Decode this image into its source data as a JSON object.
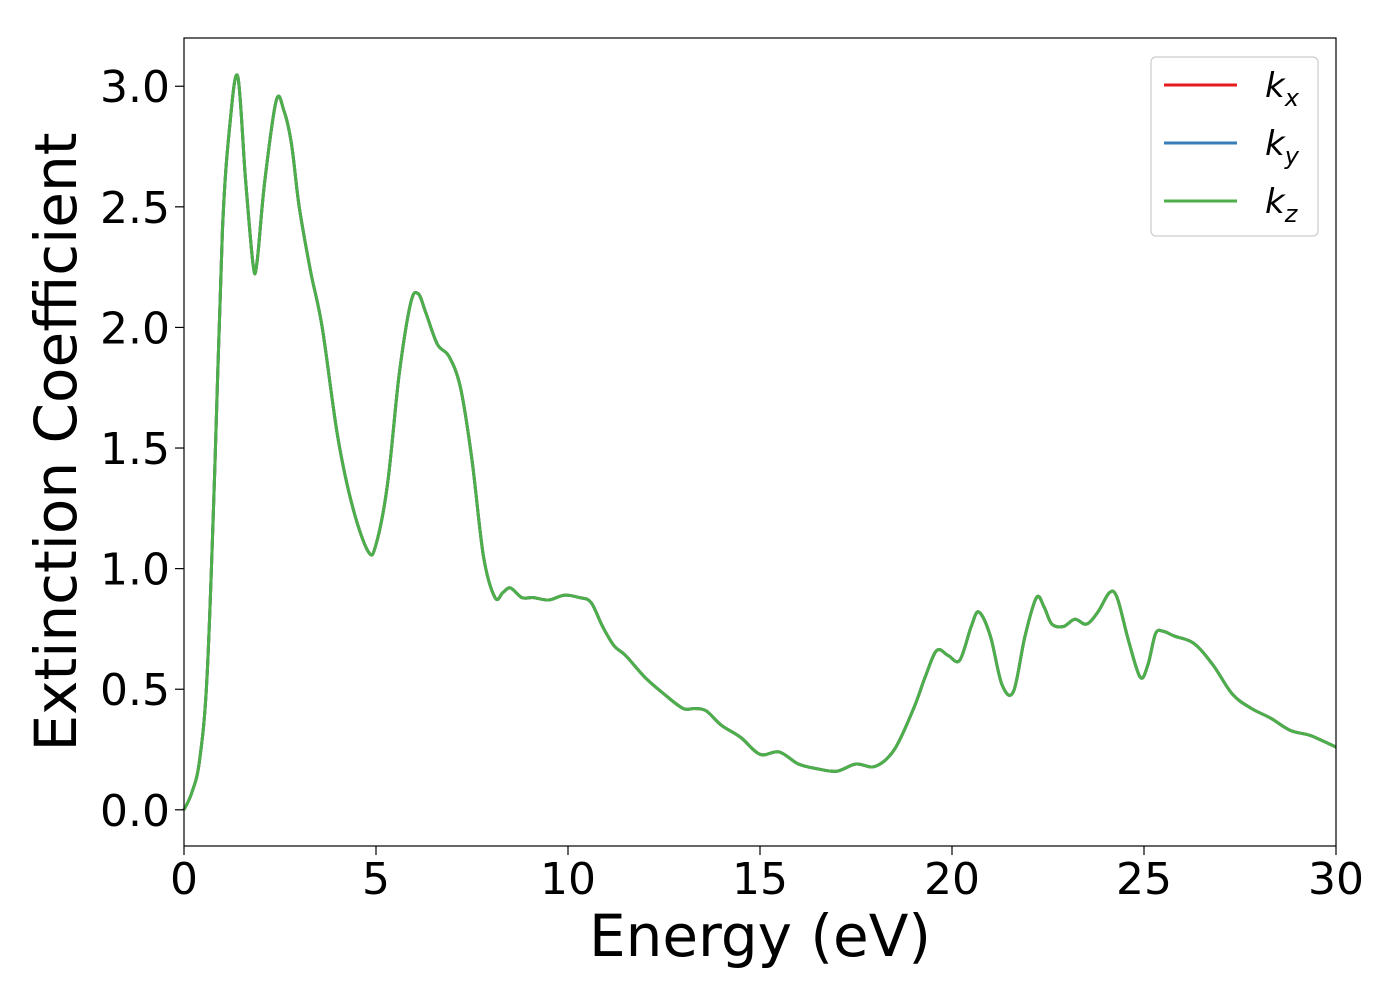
{
  "chart_data": {
    "type": "line",
    "title": "",
    "xlabel": "Energy (eV)",
    "ylabel": "Extinction Coefficient",
    "xlim": [
      0,
      30
    ],
    "ylim": [
      -0.15,
      3.2
    ],
    "xticks": [
      0,
      5,
      10,
      15,
      20,
      25,
      30
    ],
    "xtick_labels": [
      "0",
      "5",
      "10",
      "15",
      "20",
      "25",
      "30"
    ],
    "yticks": [
      0.0,
      0.5,
      1.0,
      1.5,
      2.0,
      2.5,
      3.0
    ],
    "ytick_labels": [
      "0.0",
      "0.5",
      "1.0",
      "1.5",
      "2.0",
      "2.5",
      "3.0"
    ],
    "grid": false,
    "legend_position": "top-right",
    "series": [
      {
        "name": "k_x",
        "legend_base": "k",
        "legend_sub": "x",
        "color": "#e41a1c",
        "x": [
          0,
          0.2,
          0.4,
          0.6,
          0.8,
          1.0,
          1.2,
          1.4,
          1.6,
          1.8,
          1.9,
          2.1,
          2.4,
          2.6,
          2.8,
          3.0,
          3.3,
          3.6,
          4.0,
          4.4,
          4.8,
          5.0,
          5.3,
          5.6,
          5.9,
          6.1,
          6.3,
          6.6,
          6.9,
          7.2,
          7.5,
          7.8,
          8.1,
          8.3,
          8.5,
          8.8,
          9.1,
          9.5,
          9.9,
          10.3,
          10.6,
          10.9,
          11.2,
          11.5,
          12.0,
          12.5,
          13.0,
          13.3,
          13.6,
          14.0,
          14.5,
          15.0,
          15.5,
          16.0,
          16.5,
          17.0,
          17.5,
          18.0,
          18.5,
          19.0,
          19.3,
          19.6,
          19.9,
          20.2,
          20.5,
          20.7,
          21.0,
          21.3,
          21.6,
          21.9,
          22.2,
          22.4,
          22.6,
          22.9,
          23.2,
          23.5,
          23.8,
          24.1,
          24.3,
          24.6,
          24.9,
          25.1,
          25.3,
          25.5,
          25.8,
          26.3,
          26.8,
          27.3,
          27.8,
          28.3,
          28.8,
          29.3,
          29.6,
          30.0
        ],
        "y": [
          0.0,
          0.07,
          0.2,
          0.55,
          1.4,
          2.4,
          2.85,
          3.04,
          2.62,
          2.26,
          2.27,
          2.6,
          2.94,
          2.9,
          2.76,
          2.5,
          2.23,
          2.0,
          1.55,
          1.25,
          1.07,
          1.1,
          1.35,
          1.8,
          2.1,
          2.14,
          2.06,
          1.93,
          1.88,
          1.75,
          1.45,
          1.05,
          0.88,
          0.9,
          0.92,
          0.88,
          0.88,
          0.87,
          0.89,
          0.88,
          0.86,
          0.76,
          0.68,
          0.64,
          0.55,
          0.48,
          0.42,
          0.42,
          0.41,
          0.35,
          0.3,
          0.23,
          0.24,
          0.19,
          0.17,
          0.16,
          0.19,
          0.18,
          0.25,
          0.42,
          0.55,
          0.66,
          0.64,
          0.62,
          0.76,
          0.82,
          0.72,
          0.52,
          0.49,
          0.72,
          0.88,
          0.84,
          0.77,
          0.76,
          0.79,
          0.77,
          0.82,
          0.9,
          0.88,
          0.7,
          0.55,
          0.6,
          0.73,
          0.74,
          0.72,
          0.69,
          0.6,
          0.48,
          0.42,
          0.38,
          0.33,
          0.31,
          0.29,
          0.26
        ]
      },
      {
        "name": "k_y",
        "legend_base": "k",
        "legend_sub": "y",
        "color": "#377eb8",
        "x": [
          0,
          0.2,
          0.4,
          0.6,
          0.8,
          1.0,
          1.2,
          1.4,
          1.6,
          1.8,
          1.9,
          2.1,
          2.4,
          2.6,
          2.8,
          3.0,
          3.3,
          3.6,
          4.0,
          4.4,
          4.8,
          5.0,
          5.3,
          5.6,
          5.9,
          6.1,
          6.3,
          6.6,
          6.9,
          7.2,
          7.5,
          7.8,
          8.1,
          8.3,
          8.5,
          8.8,
          9.1,
          9.5,
          9.9,
          10.3,
          10.6,
          10.9,
          11.2,
          11.5,
          12.0,
          12.5,
          13.0,
          13.3,
          13.6,
          14.0,
          14.5,
          15.0,
          15.5,
          16.0,
          16.5,
          17.0,
          17.5,
          18.0,
          18.5,
          19.0,
          19.3,
          19.6,
          19.9,
          20.2,
          20.5,
          20.7,
          21.0,
          21.3,
          21.6,
          21.9,
          22.2,
          22.4,
          22.6,
          22.9,
          23.2,
          23.5,
          23.8,
          24.1,
          24.3,
          24.6,
          24.9,
          25.1,
          25.3,
          25.5,
          25.8,
          26.3,
          26.8,
          27.3,
          27.8,
          28.3,
          28.8,
          29.3,
          29.6,
          30.0
        ],
        "y": [
          0.0,
          0.07,
          0.2,
          0.55,
          1.4,
          2.4,
          2.85,
          3.04,
          2.62,
          2.26,
          2.27,
          2.6,
          2.94,
          2.9,
          2.76,
          2.5,
          2.23,
          2.0,
          1.55,
          1.25,
          1.07,
          1.1,
          1.35,
          1.8,
          2.1,
          2.14,
          2.06,
          1.93,
          1.88,
          1.75,
          1.45,
          1.05,
          0.88,
          0.9,
          0.92,
          0.88,
          0.88,
          0.87,
          0.89,
          0.88,
          0.86,
          0.76,
          0.68,
          0.64,
          0.55,
          0.48,
          0.42,
          0.42,
          0.41,
          0.35,
          0.3,
          0.23,
          0.24,
          0.19,
          0.17,
          0.16,
          0.19,
          0.18,
          0.25,
          0.42,
          0.55,
          0.66,
          0.64,
          0.62,
          0.76,
          0.82,
          0.72,
          0.52,
          0.49,
          0.72,
          0.88,
          0.84,
          0.77,
          0.76,
          0.79,
          0.77,
          0.82,
          0.9,
          0.88,
          0.7,
          0.55,
          0.6,
          0.73,
          0.74,
          0.72,
          0.69,
          0.6,
          0.48,
          0.42,
          0.38,
          0.33,
          0.31,
          0.29,
          0.26
        ]
      },
      {
        "name": "k_z",
        "legend_base": "k",
        "legend_sub": "z",
        "color": "#4daf4a",
        "x": [
          0,
          0.2,
          0.4,
          0.6,
          0.8,
          1.0,
          1.2,
          1.4,
          1.6,
          1.8,
          1.9,
          2.1,
          2.4,
          2.6,
          2.8,
          3.0,
          3.3,
          3.6,
          4.0,
          4.4,
          4.8,
          5.0,
          5.3,
          5.6,
          5.9,
          6.1,
          6.3,
          6.6,
          6.9,
          7.2,
          7.5,
          7.8,
          8.1,
          8.3,
          8.5,
          8.8,
          9.1,
          9.5,
          9.9,
          10.3,
          10.6,
          10.9,
          11.2,
          11.5,
          12.0,
          12.5,
          13.0,
          13.3,
          13.6,
          14.0,
          14.5,
          15.0,
          15.5,
          16.0,
          16.5,
          17.0,
          17.5,
          18.0,
          18.5,
          19.0,
          19.3,
          19.6,
          19.9,
          20.2,
          20.5,
          20.7,
          21.0,
          21.3,
          21.6,
          21.9,
          22.2,
          22.4,
          22.6,
          22.9,
          23.2,
          23.5,
          23.8,
          24.1,
          24.3,
          24.6,
          24.9,
          25.1,
          25.3,
          25.5,
          25.8,
          26.3,
          26.8,
          27.3,
          27.8,
          28.3,
          28.8,
          29.3,
          29.6,
          30.0
        ],
        "y": [
          0.0,
          0.07,
          0.2,
          0.55,
          1.4,
          2.4,
          2.85,
          3.04,
          2.62,
          2.26,
          2.27,
          2.6,
          2.94,
          2.9,
          2.76,
          2.5,
          2.23,
          2.0,
          1.55,
          1.25,
          1.07,
          1.1,
          1.35,
          1.8,
          2.1,
          2.14,
          2.06,
          1.93,
          1.88,
          1.75,
          1.45,
          1.05,
          0.88,
          0.9,
          0.92,
          0.88,
          0.88,
          0.87,
          0.89,
          0.88,
          0.86,
          0.76,
          0.68,
          0.64,
          0.55,
          0.48,
          0.42,
          0.42,
          0.41,
          0.35,
          0.3,
          0.23,
          0.24,
          0.19,
          0.17,
          0.16,
          0.19,
          0.18,
          0.25,
          0.42,
          0.55,
          0.66,
          0.64,
          0.62,
          0.76,
          0.82,
          0.72,
          0.52,
          0.49,
          0.72,
          0.88,
          0.84,
          0.77,
          0.76,
          0.79,
          0.77,
          0.82,
          0.9,
          0.88,
          0.7,
          0.55,
          0.6,
          0.73,
          0.74,
          0.72,
          0.69,
          0.6,
          0.48,
          0.42,
          0.38,
          0.33,
          0.31,
          0.29,
          0.26
        ]
      }
    ]
  }
}
